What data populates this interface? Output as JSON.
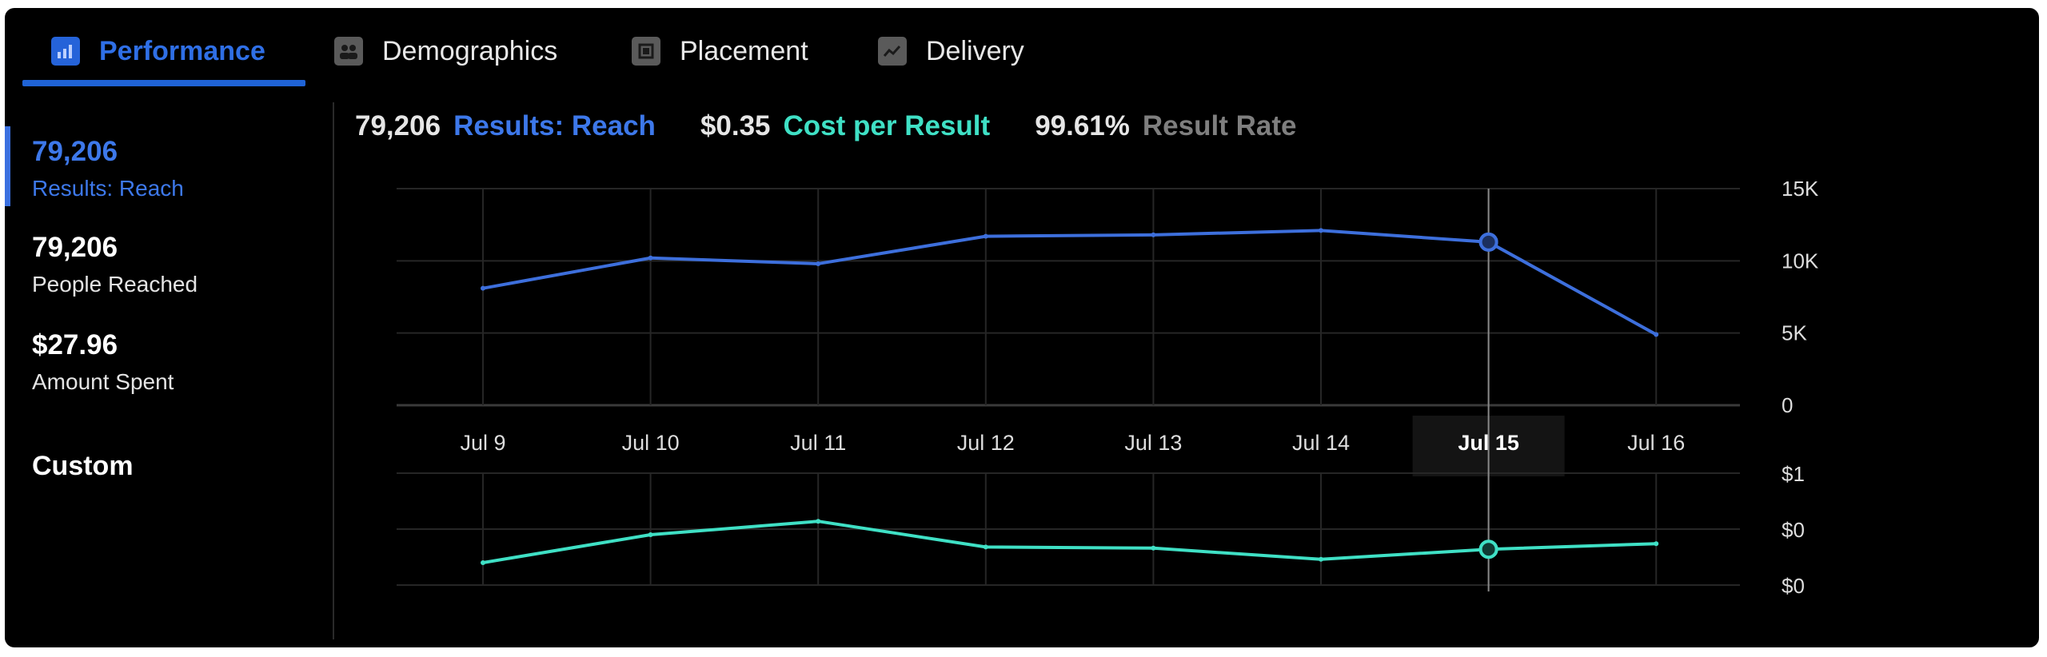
{
  "tabs": [
    {
      "label": "Performance",
      "icon": "bar-chart-icon",
      "active": true
    },
    {
      "label": "Demographics",
      "icon": "people-icon",
      "active": false
    },
    {
      "label": "Placement",
      "icon": "placement-icon",
      "active": false
    },
    {
      "label": "Delivery",
      "icon": "trend-icon",
      "active": false
    }
  ],
  "sidebar": {
    "metrics": [
      {
        "value": "79,206",
        "label": "Results: Reach",
        "active": true
      },
      {
        "value": "79,206",
        "label": "People Reached",
        "active": false
      },
      {
        "value": "$27.96",
        "label": "Amount Spent",
        "active": false
      }
    ],
    "custom_label": "Custom"
  },
  "summary": {
    "reach_value": "79,206",
    "reach_label": "Results: Reach",
    "cost_value": "$0.35",
    "cost_label": "Cost per Result",
    "rate_value": "99.61%",
    "rate_label": "Result Rate"
  },
  "colors": {
    "reach": "#3d6fdc",
    "cost": "#3fe0c5",
    "grid": "#262626",
    "accent": "#1f63d6"
  },
  "chart_data": [
    {
      "type": "line",
      "x": [
        "Jul 9",
        "Jul 10",
        "Jul 11",
        "Jul 12",
        "Jul 13",
        "Jul 14",
        "Jul 15",
        "Jul 16"
      ],
      "series": [
        {
          "values": [
            8100,
            10200,
            9800,
            11700,
            11800,
            12100,
            11300,
            4900
          ]
        }
      ],
      "y_ticks": [
        "15K",
        "10K",
        "5K",
        "0"
      ],
      "ylim": [
        0,
        15000
      ],
      "highlight": "Jul 15"
    },
    {
      "type": "line",
      "x": [
        "Jul 9",
        "Jul 10",
        "Jul 11",
        "Jul 12",
        "Jul 13",
        "Jul 14",
        "Jul 15",
        "Jul 16"
      ],
      "series": [
        {
          "values": [
            0.2,
            0.45,
            0.57,
            0.34,
            0.33,
            0.23,
            0.32,
            0.37
          ]
        }
      ],
      "y_ticks": [
        "$1",
        "$0",
        "$0"
      ],
      "highlight": "Jul 15"
    }
  ]
}
